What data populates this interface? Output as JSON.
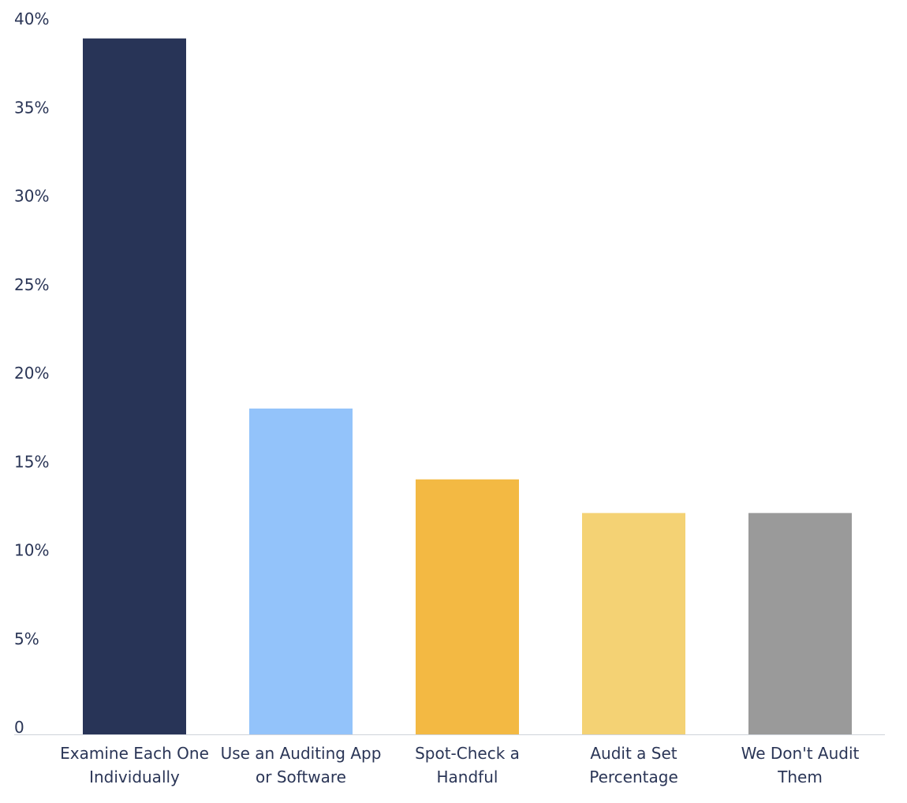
{
  "chart_data": {
    "type": "bar",
    "categories": [
      "Examine Each One Individually",
      "Use an Auditing App or Software",
      "Spot-Check a Handful",
      "Audit a Set Percentage",
      "We Don't Audit Them"
    ],
    "category_label_lines": [
      [
        "Examine Each One",
        "Individually"
      ],
      [
        "Use an Auditing App",
        "or Software"
      ],
      [
        "Spot-Check a",
        "Handful"
      ],
      [
        "Audit a Set",
        "Percentage"
      ],
      [
        "We Don't Audit",
        "Them"
      ]
    ],
    "values": [
      39.3,
      18.4,
      14.4,
      12.5,
      12.5
    ],
    "colors": [
      "#283457",
      "#93c3fa",
      "#f3b943",
      "#f4d274",
      "#9a9a9a"
    ],
    "ylim": [
      0,
      40
    ],
    "yticks": [
      0,
      5,
      10,
      15,
      20,
      25,
      30,
      35,
      40
    ],
    "ytick_labels": [
      "0",
      "5%",
      "10%",
      "15%",
      "20%",
      "25%",
      "30%",
      "35%",
      "40%"
    ],
    "title": "",
    "xlabel": "",
    "ylabel": "",
    "grid": false,
    "legend": "none"
  }
}
